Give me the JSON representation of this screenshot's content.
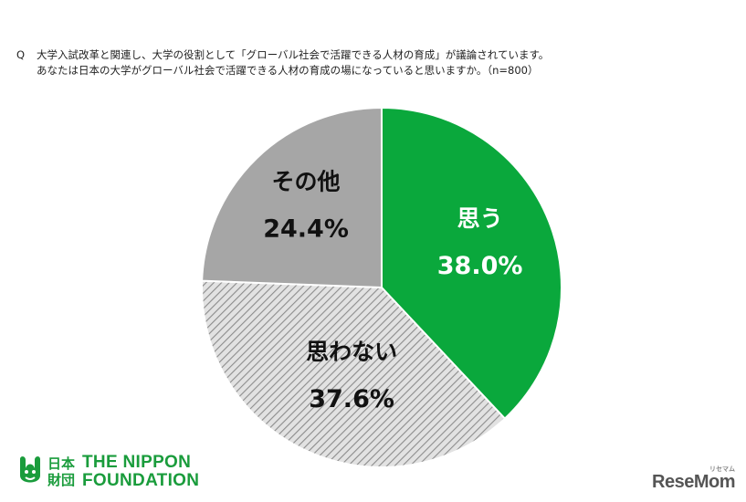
{
  "question": {
    "mark": "Q",
    "line1": "大学入試改革と関連し、大学の役割として「グローバル社会で活躍できる人材の育成」が議論されています。",
    "line2": "あなたは日本の大学がグローバル社会で活躍できる人材の育成の場になっていると思いますか。（n=800）"
  },
  "chart_data": {
    "type": "pie",
    "start": "12 o'clock, clockwise",
    "slices": [
      {
        "label": "思う",
        "value": 38.0,
        "value_label": "38.0%",
        "color": "#0aa83c",
        "pattern": "solid"
      },
      {
        "label": "思わない",
        "value": 37.6,
        "value_label": "37.6%",
        "color": "#d9d9d9",
        "pattern": "hatched"
      },
      {
        "label": "その他",
        "value": 24.4,
        "value_label": "24.4%",
        "color": "#a6a6a6",
        "pattern": "solid"
      }
    ]
  },
  "logo": {
    "kanji_top": "日本",
    "kanji_bottom": "財団",
    "en_top": "THE NIPPON",
    "en_bottom": "FOUNDATION",
    "icon": "nippon-foundation-mark-icon",
    "color": "#1a9c3c"
  },
  "watermark": {
    "text": "ReseMom",
    "small": "リセマム"
  }
}
